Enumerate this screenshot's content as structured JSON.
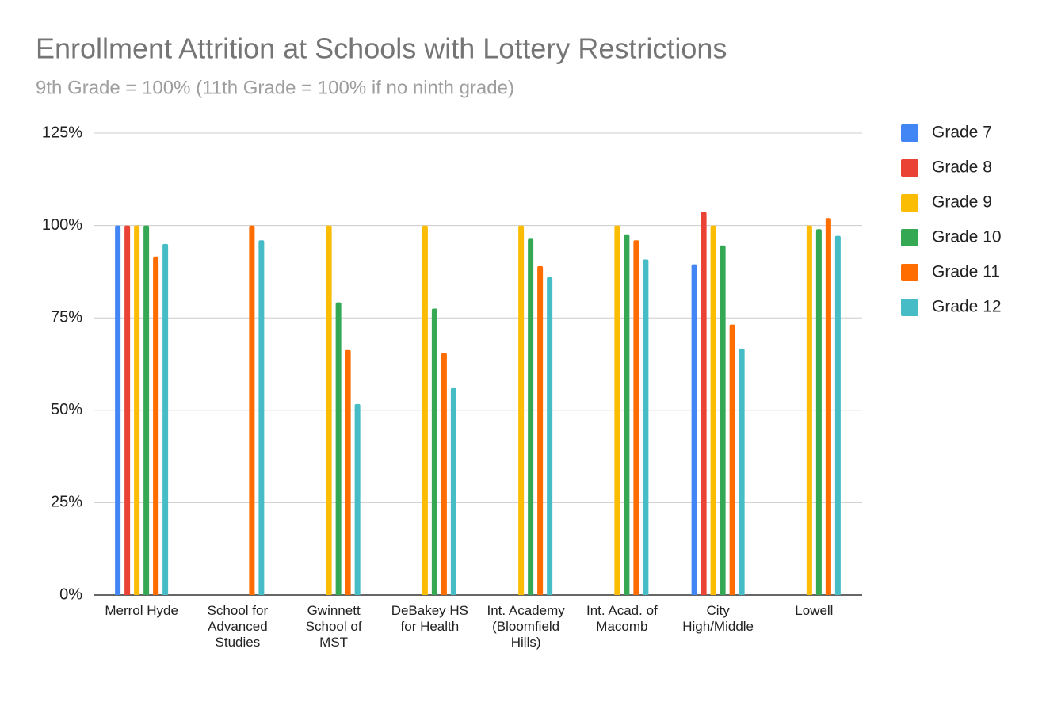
{
  "chart_data": {
    "type": "bar",
    "title": "Enrollment Attrition at Schools with Lottery Restrictions",
    "subtitle": "9th Grade = 100% (11th Grade = 100% if no ninth grade)",
    "categories": [
      "Merrol Hyde",
      "School for Advanced Studies",
      "Gwinnett School of MST",
      "DeBakey HS for Health",
      "Int. Academy (Bloomfield Hills)",
      "Int. Acad. of Macomb",
      "City High/Middle",
      "Lowell"
    ],
    "series": [
      {
        "name": "Grade 7",
        "color": "#4285f4",
        "values": [
          100,
          null,
          null,
          null,
          null,
          null,
          89.5,
          null
        ]
      },
      {
        "name": "Grade 8",
        "color": "#ea4335",
        "values": [
          100,
          null,
          null,
          null,
          null,
          null,
          103.6,
          null
        ]
      },
      {
        "name": "Grade 9",
        "color": "#fbbc04",
        "values": [
          100,
          null,
          100,
          100,
          100,
          100,
          100,
          100
        ]
      },
      {
        "name": "Grade 10",
        "color": "#34a853",
        "values": [
          100,
          null,
          79.2,
          77.5,
          96.4,
          97.6,
          94.6,
          99
        ]
      },
      {
        "name": "Grade 11",
        "color": "#ff6d01",
        "values": [
          91.6,
          100,
          66.3,
          65.5,
          89,
          96,
          73.2,
          102
        ]
      },
      {
        "name": "Grade 12",
        "color": "#46bdc6",
        "values": [
          95,
          96,
          51.7,
          56,
          86,
          90.8,
          66.7,
          97.2
        ]
      }
    ],
    "ylim": [
      0,
      125
    ],
    "yticks": [
      {
        "value": 0,
        "label": "0%"
      },
      {
        "value": 25,
        "label": "25%"
      },
      {
        "value": 50,
        "label": "50%"
      },
      {
        "value": 75,
        "label": "75%"
      },
      {
        "value": 100,
        "label": "100%"
      },
      {
        "value": 125,
        "label": "125%"
      }
    ],
    "grid": true,
    "legend": "right"
  }
}
